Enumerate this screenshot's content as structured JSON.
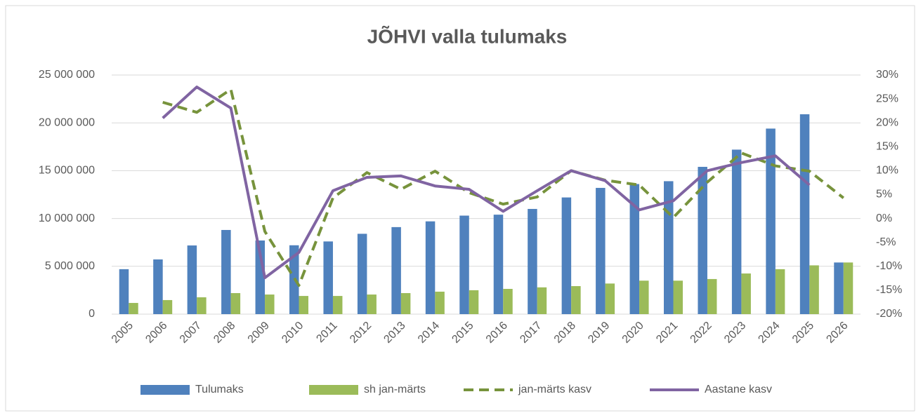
{
  "chart_data": {
    "type": "bar_line",
    "title": "JÕHVI valla tulumaks",
    "categories": [
      "2005",
      "2006",
      "2007",
      "2008",
      "2009",
      "2010",
      "2011",
      "2012",
      "2013",
      "2014",
      "2015",
      "2016",
      "2017",
      "2018",
      "2019",
      "2020",
      "2021",
      "2022",
      "2023",
      "2024",
      "2025",
      "2026"
    ],
    "series": [
      {
        "name": "Tulumaks",
        "type": "bar",
        "color": "#4f81bd",
        "values": [
          4700000,
          5720000,
          7180000,
          8800000,
          7700000,
          7200000,
          7600000,
          8400000,
          9100000,
          9700000,
          10300000,
          10400000,
          11000000,
          12200000,
          13200000,
          13600000,
          13900000,
          15400000,
          17200000,
          19400000,
          20900000,
          5400000
        ]
      },
      {
        "name": "sh jan-märts",
        "type": "bar",
        "color": "#9bbb59",
        "values": [
          1170000,
          1470000,
          1760000,
          2200000,
          2050000,
          1900000,
          1900000,
          2050000,
          2200000,
          2350000,
          2500000,
          2640000,
          2800000,
          2930000,
          3200000,
          3500000,
          3500000,
          3670000,
          4250000,
          4700000,
          5100000,
          5400000
        ]
      },
      {
        "name": "jan-märts kasv",
        "type": "line",
        "dashed": true,
        "axis": "y2",
        "color": "#77933c",
        "values": [
          null,
          24.3,
          22.2,
          27,
          -2.7,
          -14,
          4.3,
          9.6,
          6.1,
          9.9,
          5.4,
          3,
          4.5,
          10,
          8,
          7,
          0.2,
          7.6,
          13.7,
          11,
          9.9,
          4.3
        ]
      },
      {
        "name": "Aastane kasv",
        "type": "line",
        "axis": "y2",
        "color": "#8064a2",
        "values": [
          null,
          21,
          27.5,
          23.1,
          -12.4,
          -7.1,
          5.8,
          8.6,
          8.9,
          6.8,
          6.1,
          1.5,
          5.8,
          10,
          7.9,
          1.8,
          3.7,
          10,
          11.7,
          13.1,
          7,
          null
        ]
      }
    ],
    "ylim": [
      0,
      25000000
    ],
    "yticks": [
      {
        "value": 0,
        "label": "0"
      },
      {
        "value": 5000000,
        "label": "5 000 000"
      },
      {
        "value": 10000000,
        "label": "10 000 000"
      },
      {
        "value": 15000000,
        "label": "15 000 000"
      },
      {
        "value": 20000000,
        "label": "20 000 000"
      },
      {
        "value": 25000000,
        "label": "25 000 000"
      }
    ],
    "y2lim": [
      -20,
      30
    ],
    "y2ticks": [
      {
        "value": -20,
        "label": "-20%"
      },
      {
        "value": -15,
        "label": "-15%"
      },
      {
        "value": -10,
        "label": "-10%"
      },
      {
        "value": -5,
        "label": "-5%"
      },
      {
        "value": 0,
        "label": "0%"
      },
      {
        "value": 5,
        "label": "5%"
      },
      {
        "value": 10,
        "label": "10%"
      },
      {
        "value": 15,
        "label": "15%"
      },
      {
        "value": 20,
        "label": "20%"
      },
      {
        "value": 25,
        "label": "25%"
      },
      {
        "value": 30,
        "label": "30%"
      }
    ],
    "grid": true,
    "legend": "bottom"
  }
}
